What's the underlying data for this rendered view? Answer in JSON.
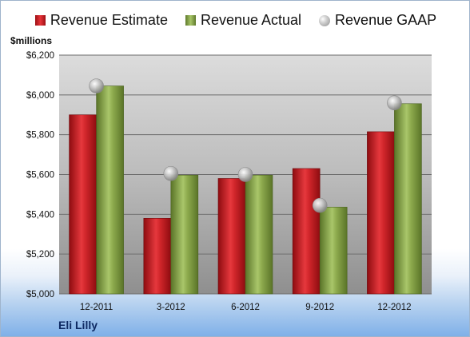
{
  "chart_data": {
    "type": "bar",
    "title": "",
    "ylabel": "$millions",
    "categories": [
      "12-2011",
      "3-2012",
      "6-2012",
      "9-2012",
      "12-2012"
    ],
    "series": [
      {
        "name": "Revenue Estimate",
        "kind": "bar",
        "color": "#d3272d",
        "values": [
          5900,
          5380,
          5580,
          5630,
          5815
        ]
      },
      {
        "name": "Revenue Actual",
        "kind": "bar",
        "color": "#8aaa4a",
        "values": [
          6045,
          5597,
          5597,
          5436,
          5956
        ]
      },
      {
        "name": "Revenue GAAP",
        "kind": "marker",
        "color": "#b0b0b0",
        "values": [
          6045,
          5605,
          5600,
          5445,
          5960
        ]
      }
    ],
    "ylim": [
      5000,
      6200
    ],
    "yticks": [
      5000,
      5200,
      5400,
      5600,
      5800,
      6000,
      6200
    ],
    "ytick_labels": [
      "$5,000",
      "$5,200",
      "$5,400",
      "$5,600",
      "$5,800",
      "$6,000",
      "$6,200"
    ],
    "grid": true,
    "legend_position": "top"
  },
  "legend": {
    "estimate": "Revenue Estimate",
    "actual": "Revenue Actual",
    "gaap": "Revenue GAAP"
  },
  "axis": {
    "unit_label": "$millions"
  },
  "footer": {
    "company": "Eli Lilly"
  }
}
